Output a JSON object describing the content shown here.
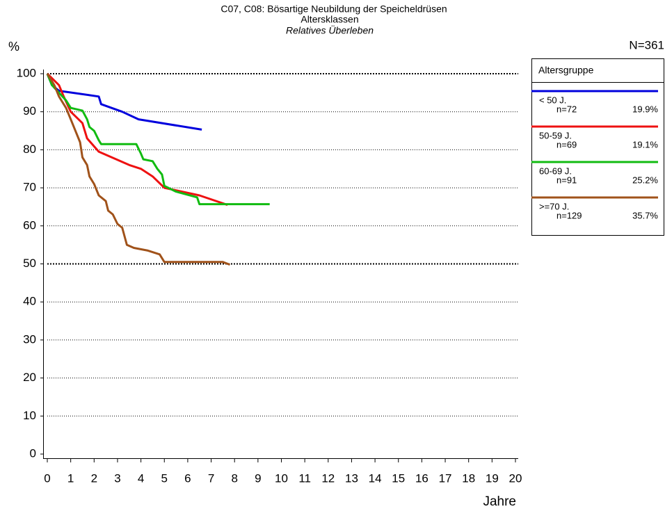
{
  "chart_data": {
    "type": "line",
    "title": "C07, C08: Bösartige Neubildung der Speicheldrüsen",
    "subtitle": "Altersklassen",
    "subtitle2": "Relatives Überleben",
    "y_label": "%",
    "x_label": "Jahre",
    "total_label": "N=361",
    "legend_title": "Altersgruppe",
    "xlim": [
      0,
      20
    ],
    "xticks": [
      0,
      1,
      2,
      3,
      4,
      5,
      6,
      7,
      8,
      9,
      10,
      11,
      12,
      13,
      14,
      15,
      16,
      17,
      18,
      19,
      20
    ],
    "ylim": [
      0,
      100
    ],
    "yticks": [
      0,
      10,
      20,
      30,
      40,
      50,
      60,
      70,
      80,
      90,
      100
    ],
    "grid": true,
    "series": [
      {
        "name": "< 50 J.",
        "count_label": "n=72",
        "share_label": "19.9%",
        "color": "#0000dd",
        "x": [
          0,
          0.2,
          0.5,
          2.2,
          2.3,
          3.2,
          3.9,
          6.6
        ],
        "values": [
          100,
          97,
          95.5,
          94,
          92,
          90,
          88,
          85.3
        ]
      },
      {
        "name": "50-59 J.",
        "count_label": "n=69",
        "share_label": "19.1%",
        "color": "#ee1111",
        "x": [
          0,
          0.5,
          0.7,
          1.0,
          1.5,
          1.7,
          2.2,
          3.5,
          4.0,
          4.5,
          5.0,
          6.5,
          7.7
        ],
        "values": [
          100,
          97,
          94,
          90,
          87,
          83,
          79.5,
          76,
          75,
          73,
          70,
          68,
          65.5
        ]
      },
      {
        "name": "60-69 J.",
        "count_label": "n=91",
        "share_label": "25.2%",
        "color": "#11bb11",
        "x": [
          0,
          0.2,
          0.5,
          0.8,
          1.0,
          1.5,
          1.7,
          1.8,
          2.0,
          2.2,
          2.3,
          3.8,
          4.0,
          4.1,
          4.5,
          4.7,
          4.9,
          5.0,
          5.5,
          6.4,
          6.5,
          9.5
        ],
        "values": [
          100,
          97,
          95,
          93,
          91,
          90.3,
          88,
          86,
          85,
          82.5,
          81.5,
          81.5,
          79,
          77.5,
          77,
          75,
          73.5,
          70.5,
          69,
          67.5,
          65.7,
          65.7
        ]
      },
      {
        "name": ">=70 J.",
        "count_label": "n=129",
        "share_label": "35.7%",
        "color": "#a0521a",
        "x": [
          0,
          0.3,
          0.5,
          0.8,
          1.0,
          1.2,
          1.4,
          1.5,
          1.7,
          1.8,
          2.0,
          2.2,
          2.5,
          2.6,
          2.8,
          3.0,
          3.2,
          3.4,
          3.7,
          4.3,
          4.8,
          5.0,
          7.5,
          7.8
        ],
        "values": [
          100,
          97,
          94,
          91,
          88,
          85,
          82,
          78,
          76,
          73,
          71,
          68,
          66.5,
          64,
          63,
          60.5,
          59.5,
          55,
          54.2,
          53.5,
          52.5,
          50.5,
          50.5,
          49.8
        ]
      }
    ]
  }
}
